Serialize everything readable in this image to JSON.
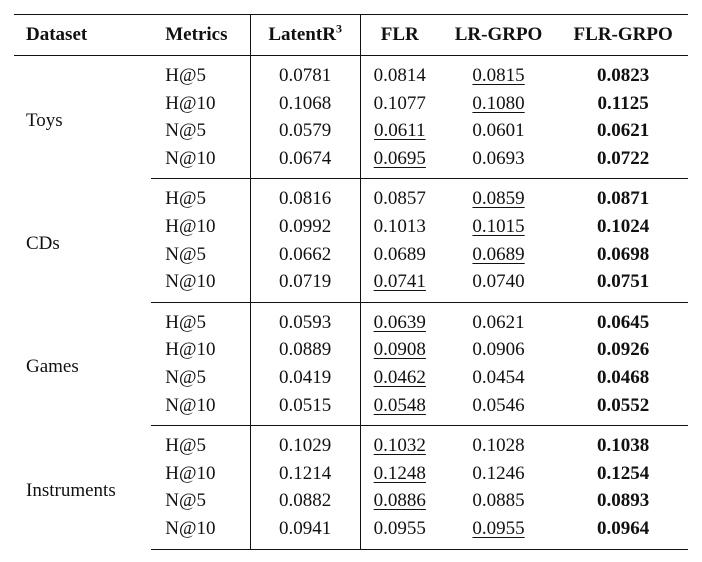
{
  "header": {
    "dataset": "Dataset",
    "metrics": "Metrics",
    "latent": "LatentR",
    "latent_sup": "3",
    "flr": "FLR",
    "lrgrpo": "LR-GRPO",
    "flrgrpo": "FLR-GRPO"
  },
  "groups": [
    {
      "dataset": "Toys",
      "rows": [
        {
          "metric": "H@5",
          "latent": "0.0781",
          "flr": "0.0814",
          "lrgrpo": "0.0815",
          "flrgrpo": "0.0823",
          "underline": "lrgrpo"
        },
        {
          "metric": "H@10",
          "latent": "0.1068",
          "flr": "0.1077",
          "lrgrpo": "0.1080",
          "flrgrpo": "0.1125",
          "underline": "lrgrpo"
        },
        {
          "metric": "N@5",
          "latent": "0.0579",
          "flr": "0.0611",
          "lrgrpo": "0.0601",
          "flrgrpo": "0.0621",
          "underline": "flr"
        },
        {
          "metric": "N@10",
          "latent": "0.0674",
          "flr": "0.0695",
          "lrgrpo": "0.0693",
          "flrgrpo": "0.0722",
          "underline": "flr"
        }
      ]
    },
    {
      "dataset": "CDs",
      "rows": [
        {
          "metric": "H@5",
          "latent": "0.0816",
          "flr": "0.0857",
          "lrgrpo": "0.0859",
          "flrgrpo": "0.0871",
          "underline": "lrgrpo"
        },
        {
          "metric": "H@10",
          "latent": "0.0992",
          "flr": "0.1013",
          "lrgrpo": "0.1015",
          "flrgrpo": "0.1024",
          "underline": "lrgrpo"
        },
        {
          "metric": "N@5",
          "latent": "0.0662",
          "flr": "0.0689",
          "lrgrpo": "0.0689",
          "flrgrpo": "0.0698",
          "underline": "lrgrpo"
        },
        {
          "metric": "N@10",
          "latent": "0.0719",
          "flr": "0.0741",
          "lrgrpo": "0.0740",
          "flrgrpo": "0.0751",
          "underline": "flr"
        }
      ]
    },
    {
      "dataset": "Games",
      "rows": [
        {
          "metric": "H@5",
          "latent": "0.0593",
          "flr": "0.0639",
          "lrgrpo": "0.0621",
          "flrgrpo": "0.0645",
          "underline": "flr"
        },
        {
          "metric": "H@10",
          "latent": "0.0889",
          "flr": "0.0908",
          "lrgrpo": "0.0906",
          "flrgrpo": "0.0926",
          "underline": "flr"
        },
        {
          "metric": "N@5",
          "latent": "0.0419",
          "flr": "0.0462",
          "lrgrpo": "0.0454",
          "flrgrpo": "0.0468",
          "underline": "flr"
        },
        {
          "metric": "N@10",
          "latent": "0.0515",
          "flr": "0.0548",
          "lrgrpo": "0.0546",
          "flrgrpo": "0.0552",
          "underline": "flr"
        }
      ]
    },
    {
      "dataset": "Instruments",
      "rows": [
        {
          "metric": "H@5",
          "latent": "0.1029",
          "flr": "0.1032",
          "lrgrpo": "0.1028",
          "flrgrpo": "0.1038",
          "underline": "flr"
        },
        {
          "metric": "H@10",
          "latent": "0.1214",
          "flr": "0.1248",
          "lrgrpo": "0.1246",
          "flrgrpo": "0.1254",
          "underline": "flr"
        },
        {
          "metric": "N@5",
          "latent": "0.0882",
          "flr": "0.0886",
          "lrgrpo": "0.0885",
          "flrgrpo": "0.0893",
          "underline": "flr"
        },
        {
          "metric": "N@10",
          "latent": "0.0941",
          "flr": "0.0955",
          "lrgrpo": "0.0955",
          "flrgrpo": "0.0964",
          "underline": "lrgrpo"
        }
      ]
    }
  ]
}
